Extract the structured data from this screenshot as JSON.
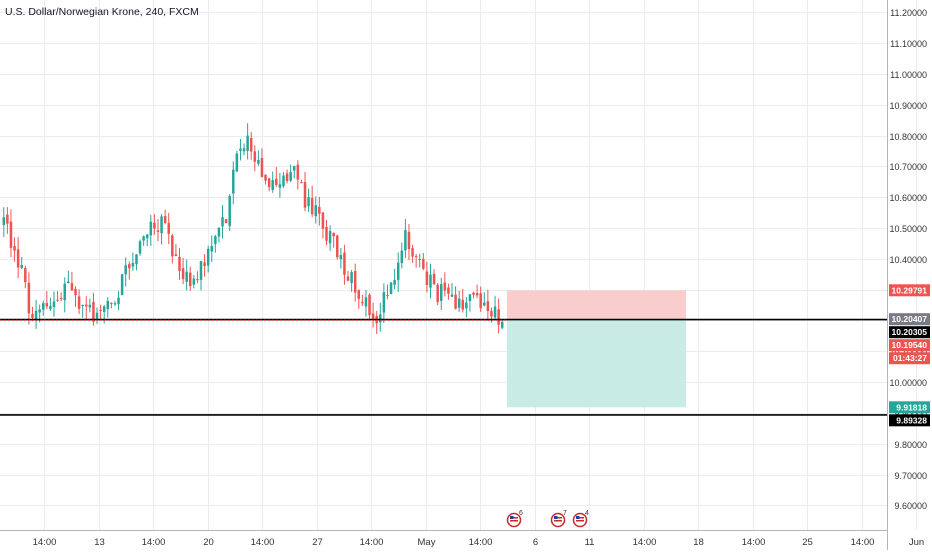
{
  "chart_title": "U.S. Dollar/Norwegian Krone, 240, FXCM",
  "colors": {
    "up": "#26a69a",
    "down": "#ef5350",
    "grid": "#e9ecf1",
    "axis_text": "#333333",
    "stop_zone": "#f9cdcb",
    "target_zone": "#c8ebe6",
    "line": "#000000",
    "entry_line": "#e53935"
  },
  "chart_data": {
    "type": "candlestick",
    "title": "U.S. Dollar/Norwegian Krone, 240, FXCM",
    "ylim": [
      9.52,
      11.24
    ],
    "y_ticks": [
      "11.20000",
      "11.10000",
      "11.00000",
      "10.90000",
      "10.80000",
      "10.70000",
      "10.60000",
      "10.50000",
      "10.40000",
      "10.30000",
      "10.20000",
      "10.10000",
      "10.00000",
      "9.90000",
      "9.80000",
      "9.70000",
      "9.60000"
    ],
    "x_ticks": [
      "14:00",
      "13",
      "14:00",
      "20",
      "14:00",
      "27",
      "14:00",
      "May",
      "14:00",
      "6",
      "11",
      "14:00",
      "18",
      "14:00",
      "25",
      "14:00",
      "Jun"
    ],
    "grid": true,
    "candles_count": 140,
    "price_path": [
      [
        0,
        10.52
      ],
      [
        4,
        10.4
      ],
      [
        8,
        10.2
      ],
      [
        14,
        10.25
      ],
      [
        18,
        10.3
      ],
      [
        24,
        10.22
      ],
      [
        30,
        10.25
      ],
      [
        34,
        10.35
      ],
      [
        40,
        10.5
      ],
      [
        44,
        10.52
      ],
      [
        48,
        10.4
      ],
      [
        52,
        10.32
      ],
      [
        58,
        10.42
      ],
      [
        62,
        10.55
      ],
      [
        66,
        10.78
      ],
      [
        68,
        10.8
      ],
      [
        72,
        10.68
      ],
      [
        76,
        10.62
      ],
      [
        80,
        10.7
      ],
      [
        84,
        10.6
      ],
      [
        90,
        10.48
      ],
      [
        96,
        10.36
      ],
      [
        100,
        10.28
      ],
      [
        104,
        10.22
      ],
      [
        108,
        10.3
      ],
      [
        112,
        10.46
      ],
      [
        118,
        10.33
      ],
      [
        124,
        10.26
      ],
      [
        132,
        10.27
      ],
      [
        139,
        10.2
      ]
    ],
    "position": {
      "stop_price": 10.29791,
      "entry_price": 10.20407,
      "target_price": 9.91818
    },
    "horizontal_lines": [
      10.20305,
      9.89328
    ],
    "price_labels": [
      {
        "text": "10.29791",
        "value": 10.29791,
        "kind": "stop"
      },
      {
        "text": "10.20407",
        "value": 10.20407,
        "kind": "entry"
      },
      {
        "text": "10.20305",
        "value": 10.20305,
        "kind": "line"
      },
      {
        "text": "10.19540",
        "value": 10.1954,
        "kind": "current"
      },
      {
        "text": "01:43:27",
        "value": 10.1954,
        "kind": "countdown"
      },
      {
        "text": "9.91818",
        "value": 9.91818,
        "kind": "target"
      },
      {
        "text": "9.89328",
        "value": 9.89328,
        "kind": "line"
      }
    ],
    "events": [
      "6",
      "7",
      "4"
    ]
  }
}
